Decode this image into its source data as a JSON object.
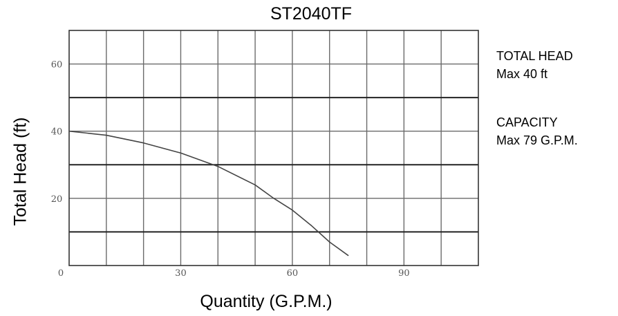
{
  "chart_data": {
    "type": "line",
    "title": "ST2040TF",
    "xlabel": "Quantity (G.P.M.)",
    "ylabel": "Total Head (ft)",
    "xlim": [
      0,
      110
    ],
    "ylim": [
      0,
      70
    ],
    "x_ticks": [
      0,
      30,
      60,
      90
    ],
    "x_tick_labels": [
      "0",
      "30",
      "60",
      "90"
    ],
    "y_ticks": [
      20,
      40,
      60
    ],
    "y_tick_labels": [
      "20",
      "40",
      "60"
    ],
    "grid": true,
    "series": [
      {
        "x": [
          0,
          10,
          20,
          30,
          40,
          50,
          55,
          60,
          65,
          70,
          75
        ],
        "y": [
          40,
          38.8,
          36.5,
          33.5,
          29.5,
          24,
          20,
          16.5,
          12,
          7,
          3
        ]
      }
    ]
  },
  "annotations": {
    "total_head_label": "TOTAL HEAD",
    "total_head_value": "Max 40 ft",
    "capacity_label": "CAPACITY",
    "capacity_value": "Max 79 G.P.M."
  }
}
